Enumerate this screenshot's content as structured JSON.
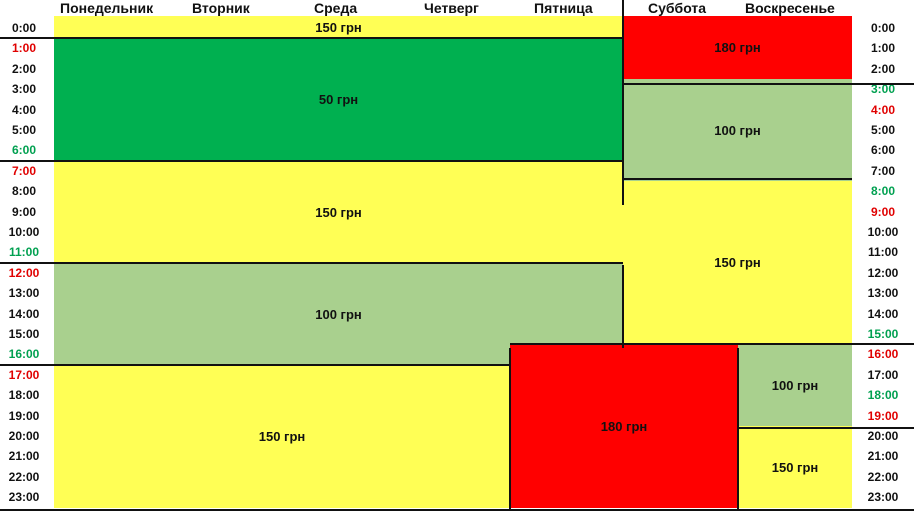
{
  "colors": {
    "yellow": "#ffff55",
    "green": "#00b050",
    "light_green": "#a9d08e",
    "red": "#ff0000",
    "time_red": "#e00000",
    "time_green": "#00a050",
    "time_black": "#111111"
  },
  "days": [
    "Понедельник",
    "Вторник",
    "Среда",
    "Четверг",
    "Пятница",
    "Суббота",
    "Воскресенье"
  ],
  "hours": [
    "0:00",
    "1:00",
    "2:00",
    "3:00",
    "4:00",
    "5:00",
    "6:00",
    "7:00",
    "8:00",
    "9:00",
    "10:00",
    "11:00",
    "12:00",
    "13:00",
    "14:00",
    "15:00",
    "16:00",
    "17:00",
    "18:00",
    "19:00",
    "20:00",
    "21:00",
    "22:00",
    "23:00"
  ],
  "left_time_colors": [
    "black",
    "red",
    "black",
    "black",
    "black",
    "black",
    "green",
    "red",
    "black",
    "black",
    "black",
    "green",
    "red",
    "black",
    "black",
    "black",
    "green",
    "red",
    "black",
    "black",
    "black",
    "black",
    "black",
    "black"
  ],
  "right_time_colors": [
    "black",
    "black",
    "black",
    "green",
    "red",
    "black",
    "black",
    "black",
    "green",
    "red",
    "black",
    "black",
    "black",
    "black",
    "black",
    "green",
    "red",
    "black",
    "green",
    "red",
    "black",
    "black",
    "black",
    "black"
  ],
  "blocks": [
    {
      "id": "weekday-night-0",
      "days": "Понедельник–Пятница",
      "from": 0,
      "to": 1,
      "color": "yellow",
      "price": "150 грн"
    },
    {
      "id": "weekday-night",
      "days": "Понедельник–Пятница",
      "from": 1,
      "to": 7,
      "color": "green",
      "price": "50 грн"
    },
    {
      "id": "weekday-morning",
      "days": "Понедельник–Пятница",
      "from": 7,
      "to": 12,
      "color": "yellow",
      "price": "150 грн"
    },
    {
      "id": "weekday-day",
      "days": "Понедельник–Пятница",
      "from": 12,
      "to": 17,
      "color": "light_green",
      "price": "100 грн"
    },
    {
      "id": "weekday-evening",
      "days": "Понедельник–Четверг",
      "from": 17,
      "to": 24,
      "color": "yellow",
      "price": "150 грн"
    },
    {
      "id": "friday-sunday-evening",
      "days": "Пятница–Суббота",
      "from": 16,
      "to": 24,
      "color": "red",
      "price": "180 грн"
    },
    {
      "id": "weekend-night",
      "days": "Суббота–Воскресенье",
      "from": 0,
      "to": 3,
      "color": "red",
      "price": "180 грн"
    },
    {
      "id": "weekend-morning",
      "days": "Суббота–Воскресенье",
      "from": 3,
      "to": 8,
      "color": "light_green",
      "price": "100 грн"
    },
    {
      "id": "weekend-day",
      "days": "Суббота–Воскресенье",
      "from": 8,
      "to": 16,
      "color": "yellow",
      "price": "150 грн"
    },
    {
      "id": "sunday-evening",
      "days": "Воскресенье",
      "from": 16,
      "to": 20,
      "color": "light_green",
      "price": "100 грн"
    },
    {
      "id": "sunday-night",
      "days": "Воскресенье",
      "from": 20,
      "to": 24,
      "color": "yellow",
      "price": "150 грн"
    }
  ]
}
